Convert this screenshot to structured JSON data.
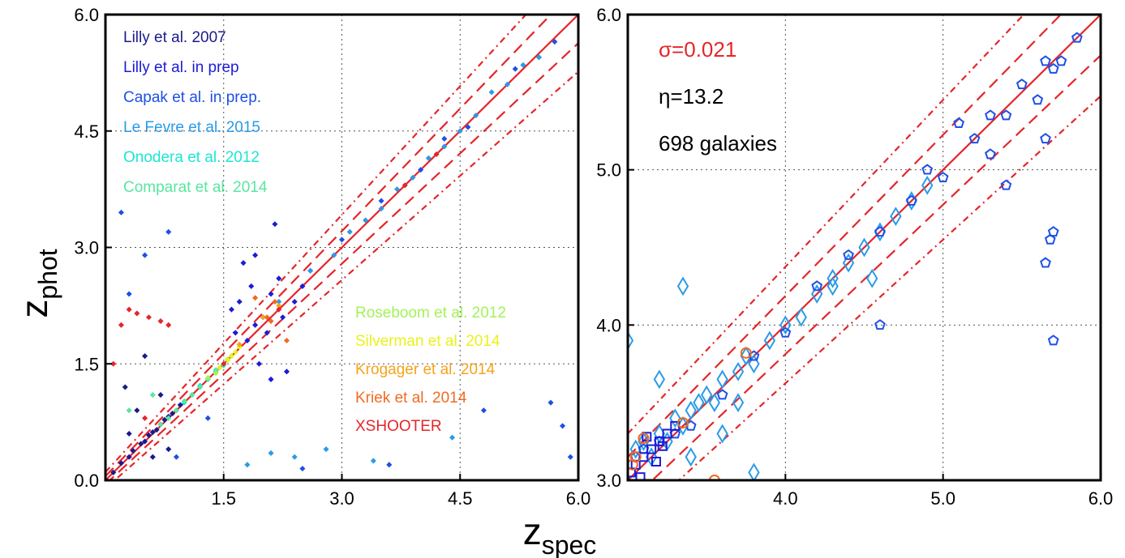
{
  "chart_data": [
    {
      "type": "scatter",
      "panel": "left",
      "xlim": [
        0.0,
        6.0
      ],
      "ylim": [
        0.0,
        6.0
      ],
      "xticks": [
        1.5,
        3.0,
        4.5,
        6.0
      ],
      "xtick_labels": [
        "1.5",
        "3.0",
        "4.5",
        "6.0"
      ],
      "yticks": [
        0.0,
        1.5,
        3.0,
        4.5,
        6.0
      ],
      "ytick_labels": [
        "0.0",
        "1.5",
        "3.0",
        "4.5",
        "6.0"
      ],
      "grid": true,
      "xlabel": "z",
      "xlabel_sub": "spec",
      "ylabel": "z",
      "ylabel_sub": "phot",
      "legend_placement": "top-left and lower-right",
      "lines": [
        {
          "name": "one-to-one",
          "style": "solid",
          "color": "#e4262b",
          "x": [
            0,
            6
          ],
          "y": [
            0,
            6
          ]
        },
        {
          "name": "outlier-bound",
          "style": "dashed",
          "color": "#e4262b",
          "x": [
            0,
            6
          ],
          "y": [
            0.15,
            6.15
          ]
        },
        {
          "name": "outlier-bound",
          "style": "dashed",
          "color": "#e4262b",
          "x": [
            0,
            6
          ],
          "y": [
            -0.15,
            5.85
          ]
        }
      ],
      "legend": [
        {
          "label": "Lilly et al. 2007",
          "color": "#1a1a8c"
        },
        {
          "label": "Lilly et al. in prep",
          "color": "#1c1cd6"
        },
        {
          "label": "Capak et al. in prep.",
          "color": "#1e4fe6"
        },
        {
          "label": "Le Fevre et al. 2015",
          "color": "#2a9be8"
        },
        {
          "label": "Onodera et al. 2012",
          "color": "#1de6d4"
        },
        {
          "label": "Comparat et al. 2014",
          "color": "#58e6a0"
        }
      ],
      "legend2": [
        {
          "label": "Roseboom et al. 2012",
          "color": "#a3f25a"
        },
        {
          "label": "Silverman et al. 2014",
          "color": "#eaf21a"
        },
        {
          "label": "Krogager et al. 2014",
          "color": "#f5a41a"
        },
        {
          "label": "Kriek et al. 2014",
          "color": "#f26a22"
        },
        {
          "label": "XSHOOTER",
          "color": "#e4262b"
        }
      ],
      "series": [
        {
          "name": "Lilly et al. 2007",
          "color": "#1a1a8c",
          "x": [
            0.1,
            0.2,
            0.3,
            0.35,
            0.45,
            0.5,
            0.55,
            0.6,
            0.65,
            0.7,
            0.75,
            0.8,
            0.85,
            0.9,
            0.95,
            0.4,
            0.3,
            0.25,
            0.6,
            0.8,
            0.5,
            0.7
          ],
          "y": [
            0.1,
            0.22,
            0.3,
            0.38,
            0.47,
            0.5,
            0.58,
            0.62,
            0.65,
            0.72,
            0.78,
            0.82,
            0.86,
            0.9,
            0.97,
            0.9,
            0.6,
            1.2,
            0.3,
            0.4,
            1.6,
            1.1
          ]
        },
        {
          "name": "Lilly et al. in prep",
          "color": "#1c1cd6",
          "x": [
            1.6,
            1.7,
            1.8,
            1.9,
            2.0,
            2.1,
            2.2,
            2.3,
            1.75,
            1.95,
            2.05,
            2.25,
            1.85,
            2.15,
            2.4,
            2.5,
            2.6,
            1.65,
            1.9,
            2.1
          ],
          "y": [
            2.2,
            2.3,
            1.8,
            2.0,
            2.1,
            2.4,
            2.6,
            1.4,
            2.8,
            1.5,
            1.9,
            2.1,
            2.5,
            3.3,
            2.3,
            2.5,
            2.7,
            1.9,
            2.9,
            1.3
          ]
        },
        {
          "name": "Capak et al. in prep.",
          "color": "#1e4fe6",
          "x": [
            0.2,
            0.5,
            0.9,
            1.3,
            2.5,
            3.0,
            3.5,
            4.0,
            4.3,
            4.6,
            5.2,
            5.5,
            5.7,
            5.8,
            5.65,
            0.3,
            0.8,
            3.6,
            4.8,
            5.9
          ],
          "y": [
            3.45,
            2.9,
            0.3,
            0.8,
            0.15,
            3.1,
            3.6,
            4.0,
            4.4,
            4.55,
            5.3,
            5.45,
            5.65,
            0.7,
            1.0,
            2.4,
            3.2,
            0.2,
            0.9,
            0.3
          ]
        },
        {
          "name": "Le Fevre et al. 2015",
          "color": "#2a9be8",
          "x": [
            1.2,
            1.4,
            2.2,
            2.6,
            2.9,
            3.1,
            3.3,
            3.5,
            3.7,
            3.9,
            4.1,
            4.3,
            4.5,
            4.7,
            4.9,
            5.1,
            5.3,
            5.5,
            2.4,
            2.8,
            3.4,
            4.4,
            1.8,
            2.1
          ],
          "y": [
            1.2,
            1.4,
            2.3,
            2.7,
            2.9,
            3.2,
            3.35,
            3.5,
            3.75,
            3.9,
            4.15,
            4.3,
            4.5,
            4.7,
            5.0,
            5.1,
            5.35,
            5.45,
            0.3,
            0.4,
            0.25,
            0.55,
            0.2,
            0.35
          ]
        },
        {
          "name": "Onodera et al. 2012",
          "color": "#1de6d4",
          "x": [
            1.0,
            1.1,
            1.2,
            1.3,
            1.4,
            1.5,
            1.55,
            1.6
          ],
          "y": [
            1.0,
            1.1,
            1.22,
            1.3,
            1.4,
            1.48,
            1.55,
            1.6
          ]
        },
        {
          "name": "Comparat et al. 2014",
          "color": "#58e6a0",
          "x": [
            0.7,
            0.8,
            0.9,
            1.0,
            1.1,
            1.2,
            1.3,
            1.4,
            0.3,
            0.6
          ],
          "y": [
            0.72,
            0.8,
            0.9,
            1.02,
            1.1,
            1.2,
            1.3,
            1.42,
            0.9,
            1.1
          ]
        },
        {
          "name": "Roseboom et al. 2012",
          "color": "#a3f25a",
          "x": [
            1.3,
            1.4,
            1.45,
            1.5,
            1.55,
            1.6
          ],
          "y": [
            1.32,
            1.38,
            1.45,
            1.5,
            1.56,
            1.6
          ]
        },
        {
          "name": "Silverman et al. 2014",
          "color": "#eaf21a",
          "x": [
            1.45,
            1.5,
            1.55,
            1.6,
            1.65,
            1.7
          ],
          "y": [
            1.45,
            1.5,
            1.55,
            1.6,
            1.65,
            1.72
          ]
        },
        {
          "name": "Krogager et al. 2014",
          "color": "#f5a41a",
          "x": [
            1.7,
            2.0,
            2.2
          ],
          "y": [
            1.75,
            2.1,
            2.25
          ]
        },
        {
          "name": "Kriek et al. 2014",
          "color": "#f26a22",
          "x": [
            2.05,
            2.1,
            2.15,
            2.3,
            1.9
          ],
          "y": [
            2.1,
            2.05,
            2.3,
            1.8,
            2.35
          ]
        },
        {
          "name": "XSHOOTER",
          "color": "#e4262b",
          "x": [
            0.1,
            0.2,
            0.3,
            0.4,
            0.55,
            0.7,
            0.8,
            0.5,
            1.5,
            2.2,
            3.8,
            4.2
          ],
          "y": [
            1.5,
            2.0,
            2.2,
            2.15,
            2.1,
            2.05,
            2.0,
            0.8,
            1.5,
            2.2,
            3.8,
            4.2
          ]
        }
      ]
    },
    {
      "type": "scatter",
      "panel": "right",
      "xlim": [
        3.0,
        6.0
      ],
      "ylim": [
        3.0,
        6.0
      ],
      "xticks": [
        4.0,
        5.0,
        6.0
      ],
      "xtick_labels": [
        "4.0",
        "5.0",
        "6.0"
      ],
      "yticks": [
        3.0,
        4.0,
        5.0,
        6.0
      ],
      "ytick_labels": [
        "3.0",
        "4.0",
        "5.0",
        "6.0"
      ],
      "grid": true,
      "stats": [
        {
          "label": "σ=0.021",
          "color": "#e4262b"
        },
        {
          "label": "η=13.2",
          "color": "#000000"
        },
        {
          "label": "698 galaxies",
          "color": "#000000"
        }
      ],
      "series": [
        {
          "name": "diamonds",
          "color": "#2a9be8",
          "marker": "diamond",
          "x": [
            3.05,
            3.1,
            3.15,
            3.2,
            3.25,
            3.3,
            3.35,
            3.4,
            3.45,
            3.5,
            3.55,
            3.6,
            3.7,
            3.75,
            3.8,
            3.9,
            4.0,
            4.1,
            4.2,
            4.3,
            4.4,
            4.5,
            4.6,
            4.7,
            4.8,
            4.9,
            3.0,
            3.2,
            3.35,
            3.6,
            3.8,
            3.7,
            3.4,
            4.3,
            4.55
          ],
          "y": [
            3.2,
            3.25,
            3.15,
            3.3,
            3.25,
            3.4,
            3.35,
            3.45,
            3.5,
            3.55,
            3.5,
            3.65,
            3.7,
            3.8,
            3.75,
            3.9,
            4.0,
            4.05,
            4.2,
            4.3,
            4.4,
            4.5,
            4.6,
            4.7,
            4.8,
            4.9,
            3.9,
            3.65,
            4.25,
            3.3,
            3.05,
            3.5,
            3.15,
            4.25,
            4.3
          ]
        },
        {
          "name": "pentagons",
          "color": "#1e4fe6",
          "marker": "pentagon",
          "x": [
            3.05,
            3.1,
            3.2,
            3.3,
            3.4,
            3.6,
            3.8,
            4.0,
            4.2,
            4.4,
            4.6,
            4.8,
            5.0,
            5.1,
            5.2,
            5.3,
            5.4,
            5.5,
            5.6,
            5.65,
            5.7,
            5.75,
            5.85,
            5.65,
            5.7,
            5.3,
            5.4,
            4.9,
            4.6,
            5.65,
            5.68,
            5.7
          ],
          "y": [
            3.15,
            3.2,
            3.25,
            3.3,
            3.35,
            3.55,
            3.8,
            3.95,
            4.25,
            4.45,
            4.6,
            4.8,
            4.95,
            5.3,
            5.2,
            5.1,
            5.35,
            5.55,
            5.45,
            5.7,
            5.65,
            5.7,
            5.85,
            5.2,
            4.6,
            5.35,
            4.9,
            5.0,
            4.0,
            4.4,
            4.55,
            3.9
          ]
        },
        {
          "name": "squares",
          "color": "#1c1cd6",
          "marker": "square",
          "x": [
            3.02,
            3.05,
            3.08,
            3.1,
            3.15,
            3.2,
            3.25,
            3.3,
            3.12,
            3.18,
            3.22
          ],
          "y": [
            3.05,
            3.1,
            3.02,
            3.15,
            3.2,
            3.25,
            3.3,
            3.35,
            3.28,
            3.12,
            3.22
          ]
        },
        {
          "name": "circles",
          "color": "#f26a22",
          "marker": "circle",
          "x": [
            3.03,
            3.1,
            3.05,
            3.35,
            3.55,
            3.75
          ],
          "y": [
            3.1,
            3.27,
            3.15,
            3.37,
            3.0,
            3.82
          ]
        }
      ]
    }
  ]
}
